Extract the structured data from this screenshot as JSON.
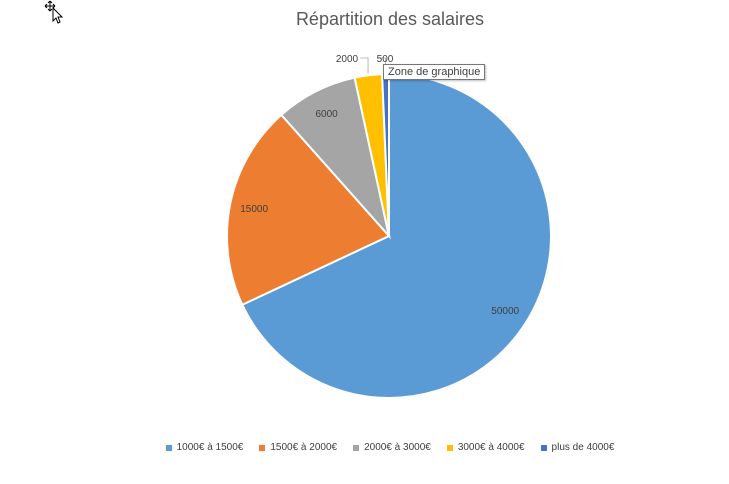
{
  "tooltip": "Zone de graphique",
  "cursor_icon": "move-cursor-icon",
  "chart_data": {
    "type": "pie",
    "title": "Répartition des salaires",
    "categories": [
      "1000€ à 1500€",
      "1500€ à 2000€",
      "2000€ à 3000€",
      "3000€ à 4000€",
      "plus de 4000€"
    ],
    "values": [
      50000,
      15000,
      6000,
      2000,
      500
    ],
    "colors": [
      "#5B9BD5",
      "#ED7D31",
      "#A5A5A5",
      "#FFC000",
      "#4472C4"
    ],
    "data_labels": [
      "50000",
      "15000",
      "6000",
      "2000",
      "500"
    ],
    "legend_position": "bottom",
    "start_angle_deg": 0,
    "direction": "clockwise"
  }
}
